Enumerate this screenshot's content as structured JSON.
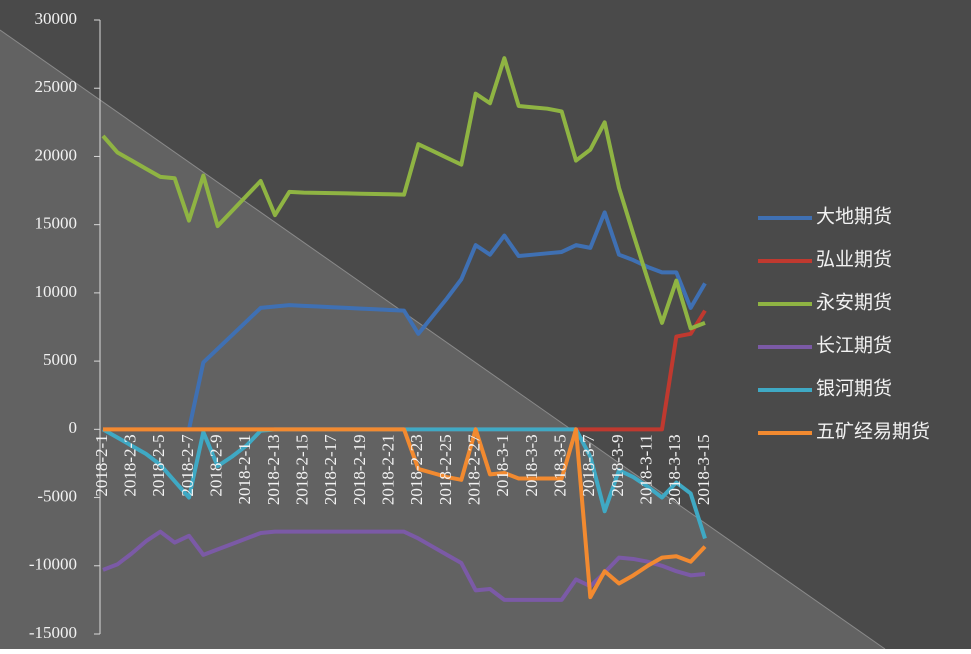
{
  "chart_data": {
    "type": "line",
    "categories": [
      "2018-2-1",
      null,
      "2018-2-3",
      null,
      "2018-2-5",
      null,
      "2018-2-7",
      null,
      "2018-2-9",
      null,
      "2018-2-11",
      null,
      "2018-2-13",
      null,
      "2018-2-15",
      null,
      "2018-2-17",
      null,
      "2018-2-19",
      null,
      "2018-2-21",
      null,
      "2018-2-23",
      null,
      "2018-2-25",
      null,
      "2018-2-27",
      null,
      "2018-3-1",
      null,
      "2018-3-3",
      null,
      "2018-3-5",
      null,
      "2018-3-7",
      null,
      "2018-3-9",
      null,
      "2018-3-11",
      null,
      "2018-3-13",
      null,
      "2018-3-15"
    ],
    "series": [
      {
        "name": "大地期货",
        "color": "#3f70b3",
        "values": [
          0,
          0,
          0,
          0,
          0,
          0,
          0,
          4900,
          5900,
          6900,
          7900,
          8900,
          9000,
          9100,
          9050,
          9000,
          8950,
          8900,
          8850,
          8800,
          8750,
          8700,
          7000,
          8300,
          9600,
          11000,
          13500,
          12800,
          14200,
          12700,
          12800,
          12900,
          13000,
          13500,
          13300,
          15900,
          12800,
          12400,
          11900,
          11500,
          11500,
          8900,
          10700
        ]
      },
      {
        "name": "弘业期货",
        "color": "#c0392f",
        "values": [
          0,
          0,
          0,
          0,
          0,
          0,
          0,
          0,
          0,
          0,
          0,
          0,
          0,
          0,
          0,
          0,
          0,
          0,
          0,
          0,
          0,
          0,
          0,
          0,
          0,
          0,
          0,
          0,
          0,
          0,
          0,
          0,
          0,
          0,
          0,
          0,
          0,
          0,
          0,
          0,
          6800,
          7000,
          8700
        ]
      },
      {
        "name": "永安期货",
        "color": "#8fb443",
        "values": [
          21500,
          20300,
          19700,
          19100,
          18500,
          18400,
          15300,
          18600,
          14900,
          16000,
          17100,
          18200,
          15700,
          17400,
          17350,
          17330,
          17310,
          17290,
          17270,
          17250,
          17230,
          17200,
          20900,
          20400,
          19900,
          19400,
          24600,
          23900,
          27200,
          23700,
          23600,
          23500,
          23300,
          19700,
          20500,
          22500,
          17700,
          14300,
          11000,
          7800,
          10900,
          7400,
          7800
        ]
      },
      {
        "name": "长江期货",
        "color": "#7b5aa6",
        "values": [
          -10300,
          -9900,
          -9100,
          -8200,
          -7500,
          -8300,
          -7800,
          -9200,
          -8800,
          -8400,
          -8000,
          -7600,
          -7500,
          -7500,
          -7500,
          -7500,
          -7500,
          -7500,
          -7500,
          -7500,
          -7500,
          -7500,
          -8000,
          -8600,
          -9200,
          -9800,
          -11800,
          -11700,
          -12500,
          -12500,
          -12500,
          -12500,
          -12500,
          -11000,
          -11500,
          -10500,
          -9400,
          -9500,
          -9700,
          -10000,
          -10400,
          -10700,
          -10600
        ]
      },
      {
        "name": "银河期货",
        "color": "#3fa9c4",
        "values": [
          0,
          -600,
          -1200,
          -1800,
          -2600,
          -3800,
          -5000,
          -200,
          -2700,
          -2000,
          -1200,
          -100,
          0,
          0,
          0,
          0,
          0,
          0,
          0,
          0,
          0,
          0,
          0,
          0,
          0,
          0,
          0,
          0,
          0,
          0,
          0,
          0,
          0,
          0,
          -2000,
          -6000,
          -3000,
          -3500,
          -4200,
          -5000,
          -3900,
          -4700,
          -8000
        ]
      },
      {
        "name": "五矿经易期货",
        "color": "#f28a30",
        "values": [
          0,
          0,
          0,
          0,
          0,
          0,
          0,
          0,
          0,
          0,
          0,
          0,
          0,
          0,
          0,
          0,
          0,
          0,
          0,
          0,
          0,
          0,
          -2900,
          -3200,
          -3500,
          -3700,
          0,
          -3300,
          -3200,
          -3600,
          -3600,
          -3600,
          -3600,
          0,
          -12300,
          -10400,
          -11300,
          -10700,
          -10000,
          -9400,
          -9300,
          -9700,
          -8600
        ]
      }
    ],
    "ylim": [
      -15000,
      30000
    ],
    "yticks": [
      -15000,
      -10000,
      -5000,
      0,
      5000,
      10000,
      15000,
      20000,
      25000,
      30000
    ]
  }
}
